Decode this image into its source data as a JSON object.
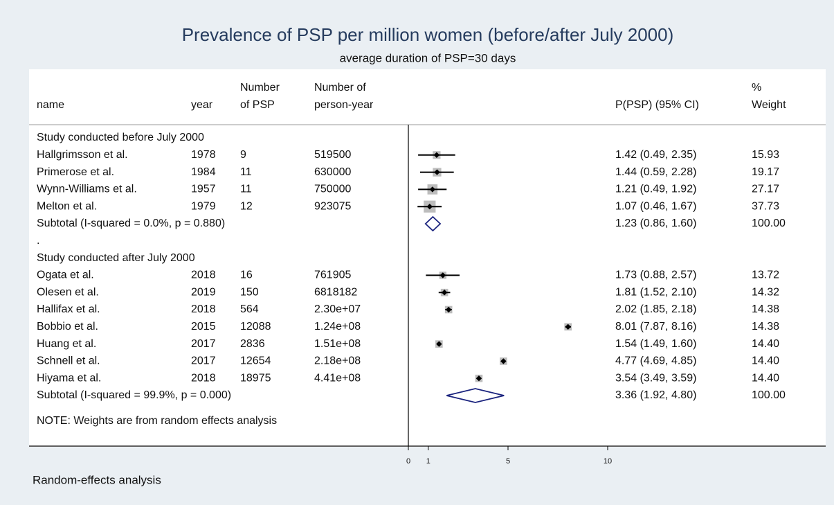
{
  "chart_data": {
    "type": "forest",
    "title": "Prevalence of PSP per million women (before/after July 2000)",
    "subtitle": "average duration of PSP=30 days",
    "columns": {
      "name": [
        "name"
      ],
      "year": [
        "year"
      ],
      "n": [
        "Number",
        "of PSP"
      ],
      "py": [
        "Number of",
        "person-year"
      ],
      "ci": [
        "P(PSP) (95% CI)"
      ],
      "weight": [
        "%",
        "Weight"
      ]
    },
    "groups": [
      {
        "label": "Study conducted before July 2000",
        "studies": [
          {
            "name": "Hallgrimsson et al.",
            "year": "1978",
            "n": "9",
            "py": "519500",
            "est": 1.42,
            "lo": 0.49,
            "hi": 2.35,
            "ci_label": "1.42 (0.49, 2.35)",
            "weight": "15.93"
          },
          {
            "name": "Primerose et al.",
            "year": "1984",
            "n": "11",
            "py": "630000",
            "est": 1.44,
            "lo": 0.59,
            "hi": 2.28,
            "ci_label": "1.44 (0.59, 2.28)",
            "weight": "19.17"
          },
          {
            "name": "Wynn-Williams et al.",
            "year": "1957",
            "n": "11",
            "py": "750000",
            "est": 1.21,
            "lo": 0.49,
            "hi": 1.92,
            "ci_label": "1.21 (0.49, 1.92)",
            "weight": "27.17"
          },
          {
            "name": "Melton et al.",
            "year": "1979",
            "n": "12",
            "py": "923075",
            "est": 1.07,
            "lo": 0.46,
            "hi": 1.67,
            "ci_label": "1.07 (0.46, 1.67)",
            "weight": "37.73"
          }
        ],
        "subtotal": {
          "label": "Subtotal  (I-squared = 0.0%, p = 0.880)",
          "est": 1.23,
          "lo": 0.86,
          "hi": 1.6,
          "ci_label": "1.23 (0.86, 1.60)",
          "weight": "100.00"
        }
      },
      {
        "label": "Study conducted after July 2000",
        "studies": [
          {
            "name": "Ogata et al.",
            "year": "2018",
            "n": "16",
            "py": "761905",
            "est": 1.73,
            "lo": 0.88,
            "hi": 2.57,
            "ci_label": "1.73 (0.88, 2.57)",
            "weight": "13.72"
          },
          {
            "name": "Olesen et al.",
            "year": "2019",
            "n": "150",
            "py": "6818182",
            "est": 1.81,
            "lo": 1.52,
            "hi": 2.1,
            "ci_label": "1.81 (1.52, 2.10)",
            "weight": "14.32"
          },
          {
            "name": "Hallifax et al.",
            "year": "2018",
            "n": "564",
            "py": "2.30e+07",
            "est": 2.02,
            "lo": 1.85,
            "hi": 2.18,
            "ci_label": "2.02 (1.85, 2.18)",
            "weight": "14.38"
          },
          {
            "name": "Bobbio et al.",
            "year": "2015",
            "n": "12088",
            "py": "1.24e+08",
            "est": 8.01,
            "lo": 7.87,
            "hi": 8.16,
            "ci_label": "8.01 (7.87, 8.16)",
            "weight": "14.38"
          },
          {
            "name": "Huang et al.",
            "year": "2017",
            "n": "2836",
            "py": "1.51e+08",
            "est": 1.54,
            "lo": 1.49,
            "hi": 1.6,
            "ci_label": "1.54 (1.49, 1.60)",
            "weight": "14.40"
          },
          {
            "name": "Schnell et al.",
            "year": "2017",
            "n": "12654",
            "py": "2.18e+08",
            "est": 4.77,
            "lo": 4.69,
            "hi": 4.85,
            "ci_label": "4.77 (4.69, 4.85)",
            "weight": "14.40"
          },
          {
            "name": "Hiyama et al.",
            "year": "2018",
            "n": "18975",
            "py": "4.41e+08",
            "est": 3.54,
            "lo": 3.49,
            "hi": 3.59,
            "ci_label": "3.54 (3.49, 3.59)",
            "weight": "14.40"
          }
        ],
        "subtotal": {
          "label": "Subtotal  (I-squared = 99.9%, p = 0.000)",
          "est": 3.36,
          "lo": 1.92,
          "hi": 4.8,
          "ci_label": "3.36 (1.92, 4.80)",
          "weight": "100.00"
        }
      }
    ],
    "separator": ".",
    "note": "NOTE: Weights are from random effects analysis",
    "footer": "Random-effects analysis",
    "xlim": [
      0,
      10
    ],
    "xticks": [
      0,
      1,
      5,
      10
    ]
  }
}
